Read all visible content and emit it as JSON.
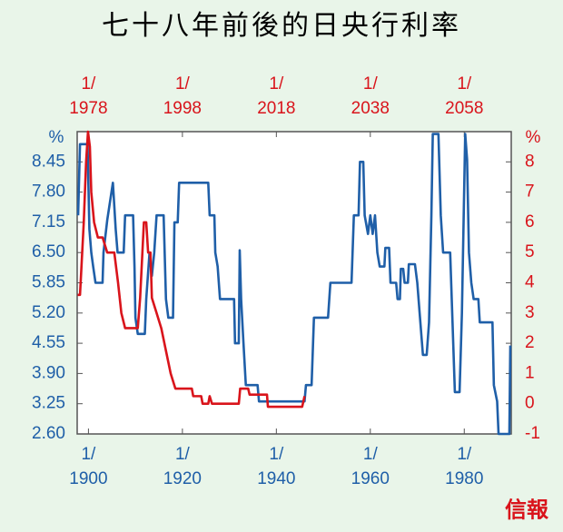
{
  "chart_data": {
    "type": "line",
    "title": "七十八年前後的日央行利率",
    "watermark": "信報",
    "y_label": "%",
    "y2_label": "%",
    "xlim": [
      1897.6,
      1990
    ],
    "xticks": [
      {
        "value": 1900,
        "label": "1/\n1900"
      },
      {
        "value": 1920,
        "label": "1/\n1920"
      },
      {
        "value": 1940,
        "label": "1/\n1940"
      },
      {
        "value": 1960,
        "label": "1/\n1960"
      },
      {
        "value": 1980,
        "label": "1/\n1980"
      }
    ],
    "x2lim": [
      1975.6,
      2068
    ],
    "x2ticks": [
      {
        "value": 1978,
        "label": "1/\n1978"
      },
      {
        "value": 1998,
        "label": "1/\n1998"
      },
      {
        "value": 2018,
        "label": "1/\n2018"
      },
      {
        "value": 2038,
        "label": "1/\n2038"
      },
      {
        "value": 2058,
        "label": "1/\n2058"
      }
    ],
    "ylim": [
      2.6,
      9.1
    ],
    "yticks": [
      {
        "value": 2.6,
        "label": "2.60"
      },
      3.25,
      {
        "value": 3.9,
        "label": "3.90"
      },
      4.55,
      {
        "value": 5.2,
        "label": "5.20"
      },
      5.85,
      {
        "value": 6.5,
        "label": "6.50"
      },
      7.15,
      {
        "value": 7.8,
        "label": "7.80"
      },
      8.45
    ],
    "y2lim": [
      -1,
      9
    ],
    "y2ticks": [
      -1,
      0,
      1,
      2,
      3,
      4,
      5,
      6,
      7,
      8
    ],
    "series": [
      {
        "color": "#1f5fa8",
        "axis": "y",
        "x": [
          1897.8,
          1898.2,
          1899.8,
          1900.2,
          1900.6,
          1901.0,
          1901.5,
          1903,
          1903.2,
          1904,
          1905.2,
          1905.8,
          1906.2,
          1907.5,
          1907.8,
          1909.5,
          1909.8,
          1910,
          1910.5,
          1912,
          1912.3,
          1913,
          1913.5,
          1914,
          1914.5,
          1916,
          1916.5,
          1917,
          1918,
          1918.3,
          1919,
          1919.3,
          1925.5,
          1925.8,
          1926.8,
          1927,
          1927.5,
          1928,
          1931,
          1931.2,
          1932,
          1932.2,
          1932.5,
          1933,
          1933.5,
          1936,
          1936.3,
          1946,
          1946.3,
          1947.5,
          1948,
          1951,
          1951.5,
          1956,
          1956.5,
          1957.5,
          1957.8,
          1958.5,
          1958.8,
          1959.5,
          1960,
          1960.5,
          1961,
          1961.5,
          1962,
          1963,
          1963.2,
          1964,
          1964.3,
          1965.5,
          1965.8,
          1966.3,
          1966.5,
          1967,
          1967.3,
          1968,
          1968.2,
          1969.5,
          1970,
          1970.5,
          1971.2,
          1972,
          1972.5,
          1973,
          1973.3,
          1974.5,
          1975,
          1975.5,
          1977,
          1977.5,
          1978,
          1979,
          1979.5,
          1980.2,
          1980.6,
          1981,
          1981.5,
          1982,
          1983,
          1983.3,
          1986,
          1986.3,
          1987,
          1987.3,
          1989.6,
          1989.8
        ],
        "values": [
          7.3,
          8.83,
          8.83,
          7.0,
          6.5,
          6.2,
          5.85,
          5.85,
          6.5,
          7.2,
          8.0,
          7.0,
          6.5,
          6.5,
          7.3,
          7.3,
          6.2,
          5.1,
          4.75,
          4.75,
          5.5,
          6.5,
          6.0,
          6.5,
          7.3,
          7.3,
          5.5,
          5.1,
          5.1,
          7.15,
          7.15,
          8.0,
          8.0,
          7.3,
          7.3,
          6.5,
          6.2,
          5.5,
          5.5,
          4.55,
          4.55,
          6.55,
          5.5,
          4.55,
          3.65,
          3.65,
          3.3,
          3.3,
          3.65,
          3.65,
          5.1,
          5.1,
          5.85,
          5.85,
          7.3,
          7.3,
          8.45,
          8.45,
          7.3,
          6.9,
          7.3,
          6.9,
          7.3,
          6.5,
          6.2,
          6.2,
          6.6,
          6.6,
          5.85,
          5.85,
          5.5,
          5.5,
          6.15,
          6.15,
          5.85,
          5.85,
          6.25,
          6.25,
          5.85,
          5.2,
          4.3,
          4.3,
          5.0,
          7.3,
          9.05,
          9.05,
          7.3,
          6.5,
          6.5,
          5.0,
          3.5,
          3.5,
          5.2,
          9.05,
          8.5,
          6.5,
          5.85,
          5.5,
          5.5,
          5.0,
          5.0,
          3.65,
          3.3,
          2.6,
          2.6,
          4.5
        ]
      },
      {
        "color": "#d9141b",
        "axis": "y2",
        "x": [
          1975.7,
          1976.2,
          1976.5,
          1977.0,
          1977.5,
          1977.9,
          1978.3,
          1978.6,
          1979.2,
          1980.0,
          1981.0,
          1982.0,
          1983.5,
          1984.3,
          1985.0,
          1985.8,
          1988.5,
          1989.0,
          1989.8,
          1990.3,
          1990.7,
          1991.2,
          1991.5,
          1992.5,
          1993.5,
          1994.5,
          1995.5,
          1996.5,
          2000,
          2000.3,
          2002,
          2002.3,
          2003.5,
          2003.8,
          2004.3,
          2010,
          2010.3,
          2012,
          2012.3,
          2016,
          2016.2,
          2023.5,
          2024
        ],
        "values": [
          3.6,
          3.6,
          4.5,
          6.0,
          8.0,
          9.0,
          8.5,
          7.0,
          6.0,
          5.5,
          5.5,
          5.0,
          5.0,
          4.0,
          3.0,
          2.5,
          2.5,
          3.5,
          6.0,
          6.0,
          5.0,
          5.0,
          3.5,
          3.0,
          2.5,
          1.75,
          1.0,
          0.5,
          0.5,
          0.25,
          0.25,
          0.0,
          0.0,
          0.25,
          0.0,
          0.0,
          0.5,
          0.5,
          0.3,
          0.3,
          -0.1,
          -0.1,
          0.25
        ]
      }
    ]
  }
}
